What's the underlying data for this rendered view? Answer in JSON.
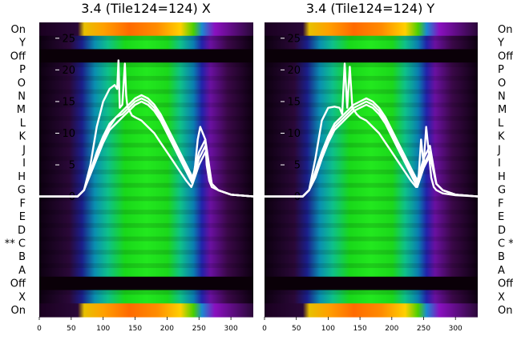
{
  "chart_data": [
    {
      "type": "heatmap",
      "title": "3.4 (Tile124=124) X",
      "row_labels_left": [
        "On",
        "Y",
        "Off",
        "P",
        "O",
        "N",
        "M",
        "L",
        "K",
        "J",
        "I",
        "H",
        "G",
        "F",
        "E",
        "D",
        "** C",
        "B",
        "A",
        "Off",
        "X",
        "On"
      ],
      "x_ticks": [
        0,
        50,
        100,
        150,
        200,
        250,
        300
      ],
      "x_range": [
        0,
        335
      ],
      "y_ticks": [
        0,
        5,
        10,
        15,
        20,
        25
      ],
      "y_range": [
        -19,
        27.5
      ],
      "line_series": [
        {
          "x": [
            0,
            60,
            70,
            80,
            90,
            100,
            110,
            118,
            122,
            124,
            126,
            130,
            134,
            136,
            138,
            145,
            150,
            160,
            170,
            180,
            190,
            200,
            210,
            220,
            230,
            238,
            240,
            244,
            248,
            252,
            256,
            260,
            262,
            266,
            270,
            280,
            300,
            335
          ],
          "y": [
            0,
            0,
            1,
            5,
            11,
            15,
            17,
            17.6,
            17,
            21.5,
            14,
            14.5,
            21,
            16,
            14.2,
            12.8,
            12.5,
            12,
            11,
            10,
            8.5,
            7,
            5.5,
            4,
            2.5,
            1.5,
            2,
            5,
            9,
            11,
            10,
            9,
            5,
            2.5,
            1.5,
            1,
            0.3,
            0
          ]
        },
        {
          "x": [
            0,
            60,
            70,
            80,
            90,
            100,
            110,
            120,
            130,
            140,
            150,
            160,
            170,
            180,
            190,
            200,
            210,
            220,
            230,
            240,
            250,
            260,
            270,
            280,
            300,
            335
          ],
          "y": [
            0,
            0,
            1,
            4,
            7,
            9.5,
            11.5,
            12.5,
            13.5,
            14.5,
            15.5,
            16,
            15.5,
            14.5,
            13,
            11,
            9,
            7,
            5,
            3,
            7,
            9,
            2,
            1,
            0.3,
            0
          ]
        },
        {
          "x": [
            0,
            60,
            70,
            80,
            90,
            100,
            110,
            120,
            130,
            140,
            150,
            160,
            170,
            180,
            190,
            200,
            210,
            220,
            230,
            240,
            250,
            260,
            270,
            280,
            300,
            335
          ],
          "y": [
            0,
            0,
            1,
            4,
            6.5,
            9,
            11,
            12.5,
            13,
            14,
            15,
            15.5,
            15,
            14,
            12.5,
            10.5,
            8.5,
            6.5,
            4.5,
            2.5,
            6,
            8,
            2,
            1,
            0.3,
            0
          ]
        },
        {
          "x": [
            0,
            60,
            70,
            80,
            90,
            100,
            110,
            120,
            130,
            140,
            150,
            160,
            170,
            180,
            190,
            200,
            210,
            220,
            230,
            240,
            250,
            260,
            270,
            280,
            300,
            335
          ],
          "y": [
            0,
            0,
            1,
            3.5,
            6,
            8.5,
            10.5,
            11.5,
            12.5,
            13.5,
            14.5,
            15,
            14.5,
            13.5,
            12,
            10,
            8,
            6,
            4,
            2,
            5,
            7,
            2,
            1,
            0.3,
            0
          ]
        }
      ]
    },
    {
      "type": "heatmap",
      "title": "3.4 (Tile124=124) Y",
      "row_labels_right": [
        "On",
        "Y",
        "Off",
        "P",
        "O",
        "N",
        "M",
        "L",
        "K",
        "J",
        "I",
        "H",
        "G",
        "F",
        "E",
        "D",
        "C **",
        "B",
        "A",
        "Off",
        "X",
        "On"
      ],
      "x_ticks": [
        0,
        50,
        100,
        150,
        200,
        250,
        300
      ],
      "x_range": [
        0,
        335
      ],
      "y_ticks": [
        0,
        5,
        10,
        15,
        20,
        25
      ],
      "y_range": [
        -19,
        27.5
      ],
      "line_series": [
        {
          "x": [
            0,
            60,
            70,
            80,
            90,
            100,
            110,
            118,
            122,
            126,
            130,
            134,
            138,
            145,
            150,
            160,
            170,
            180,
            190,
            200,
            210,
            220,
            230,
            238,
            242,
            246,
            250,
            254,
            258,
            262,
            266,
            270,
            280,
            300,
            335
          ],
          "y": [
            0,
            0,
            1,
            6,
            12,
            14,
            14.2,
            14,
            13,
            21,
            14,
            20.5,
            14,
            13,
            12.5,
            12,
            11,
            10,
            8.5,
            7,
            5.5,
            4,
            2.5,
            1.5,
            3,
            9,
            5,
            11,
            7,
            3,
            1.5,
            1,
            0.5,
            0.2,
            0
          ]
        },
        {
          "x": [
            0,
            60,
            70,
            80,
            90,
            100,
            110,
            120,
            130,
            140,
            150,
            160,
            170,
            180,
            190,
            200,
            210,
            220,
            230,
            240,
            250,
            260,
            270,
            280,
            300,
            335
          ],
          "y": [
            0,
            0,
            1,
            4,
            7,
            9.5,
            11.5,
            12.5,
            13.5,
            14.5,
            15,
            15.5,
            15,
            14,
            12.5,
            10.5,
            8.5,
            6.5,
            4.5,
            2.5,
            6,
            8,
            2,
            1,
            0.3,
            0
          ]
        },
        {
          "x": [
            0,
            60,
            70,
            80,
            90,
            100,
            110,
            120,
            130,
            140,
            150,
            160,
            170,
            180,
            190,
            200,
            210,
            220,
            230,
            240,
            250,
            260,
            270,
            280,
            300,
            335
          ],
          "y": [
            0,
            0,
            1,
            3.5,
            6.5,
            9,
            11,
            12,
            13,
            14,
            14.5,
            15,
            14.5,
            13.5,
            12,
            10,
            8,
            6,
            4,
            2,
            5,
            7,
            2,
            1,
            0.3,
            0
          ]
        },
        {
          "x": [
            0,
            60,
            70,
            80,
            90,
            100,
            110,
            120,
            130,
            140,
            150,
            160,
            170,
            180,
            190,
            200,
            210,
            220,
            230,
            240,
            250,
            260,
            270,
            280,
            300,
            335
          ],
          "y": [
            0,
            0,
            1,
            3,
            6,
            8.5,
            10.5,
            11.5,
            12.5,
            13.5,
            14,
            14.5,
            14,
            13,
            11.5,
            9.5,
            7.5,
            5.5,
            3.5,
            1.5,
            4.5,
            6.5,
            2,
            1,
            0.3,
            0
          ]
        }
      ]
    }
  ]
}
